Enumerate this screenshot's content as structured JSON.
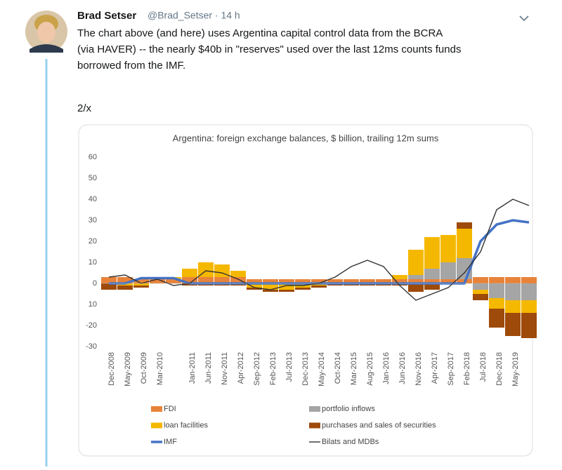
{
  "tweet": {
    "name": "Brad Setser",
    "meta": "@Brad_Setser · 14 h",
    "lines": [
      "The chart above (and here) uses Argentina capital control data from the BCRA",
      "(via HAVER) -- the nearly $40b in \"reserves\" used over the last 12ms counts funds",
      "borrowed from the IMF."
    ],
    "footer": "2/x"
  },
  "chart_data": {
    "type": "bar",
    "title": "Argentina: foreign exchange balances, $ billion, trailing 12m sums",
    "categories": [
      "Dec-2008",
      "May-2009",
      "Oct-2009",
      "Mar-2010",
      null,
      "Jan-2011",
      "Jun-2011",
      "Nov-2011",
      "Apr-2012",
      "Sep-2012",
      "Feb-2013",
      "Jul-2013",
      "Dec-2013",
      "May-2014",
      "Oct-2014",
      "Mar-2015",
      "Aug-2015",
      "Jan-2016",
      "Jun-2016",
      "Nov-2016",
      "Apr-2017",
      "Sep-2017",
      "Feb-2018",
      "Jul-2018",
      "Dec-2018",
      "May-2019",
      null
    ],
    "series": [
      {
        "name": "FDI",
        "type": "bar",
        "color": "#e8833a",
        "values": [
          3,
          3,
          2,
          2,
          2,
          3,
          3,
          3,
          3,
          2,
          2,
          2,
          2,
          2,
          2,
          2,
          2,
          2,
          2,
          2,
          2,
          2,
          2,
          3,
          3,
          3,
          3
        ]
      },
      {
        "name": "portfolio inflows",
        "type": "bar",
        "color": "#a5a5a5",
        "values": [
          0,
          0,
          0,
          0,
          0,
          0,
          0,
          0,
          0,
          0,
          0,
          0,
          0,
          0,
          0,
          0,
          0,
          0,
          0,
          2,
          5,
          8,
          10,
          -3,
          -7,
          -8,
          -8
        ]
      },
      {
        "name": "loan facilities",
        "type": "bar",
        "color": "#f5b800",
        "values": [
          0,
          -1,
          -1,
          0,
          1,
          4,
          7,
          6,
          3,
          -2,
          -3,
          -3,
          -2,
          -1,
          0,
          0,
          0,
          0,
          2,
          12,
          15,
          13,
          14,
          -2,
          -5,
          -6,
          -6
        ]
      },
      {
        "name": "purchases and sales of securities",
        "type": "bar",
        "color": "#9e4a0a",
        "values": [
          -3,
          -2,
          -1,
          0,
          0,
          -1,
          -1,
          -1,
          -1,
          -1,
          -1,
          -1,
          -1,
          -1,
          -1,
          -1,
          -1,
          -1,
          -1,
          -4,
          -3,
          0,
          3,
          -3,
          -9,
          -11,
          -12
        ]
      },
      {
        "name": "IMF",
        "type": "line",
        "color": "#4472c4",
        "values": [
          0,
          0,
          2.5,
          2.5,
          2.5,
          0,
          0,
          0,
          0,
          0,
          0,
          0,
          0,
          0,
          0,
          0,
          0,
          0,
          0,
          0,
          0,
          0,
          0,
          20,
          28,
          30,
          29
        ]
      },
      {
        "name": "Bilats and MDBs",
        "type": "line",
        "color": "#333333",
        "values": [
          3,
          4,
          0,
          2,
          -1,
          0,
          6,
          5,
          2,
          -2,
          -3,
          -1,
          -1,
          0,
          3,
          8,
          11,
          8,
          -1,
          -8,
          -5,
          -2,
          5,
          15,
          35,
          40,
          37
        ]
      }
    ],
    "ylim": [
      -30,
      60
    ],
    "yticks": [
      60,
      50,
      40,
      30,
      20,
      10,
      0,
      {
        "value": -10,
        "label": "10"
      },
      -20,
      -30
    ]
  }
}
